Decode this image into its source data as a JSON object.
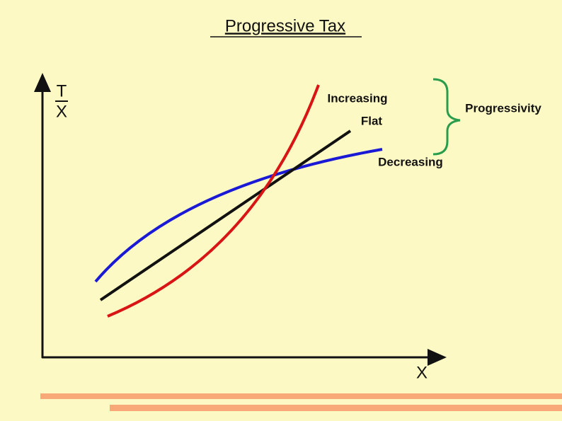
{
  "header": {
    "title": "Progressive Tax"
  },
  "axes": {
    "y_label_numerator": "T",
    "y_label_denominator": "X",
    "x_label": "X"
  },
  "curves": [
    {
      "label": "Increasing"
    },
    {
      "label": "Flat"
    },
    {
      "label": "Decreasing"
    }
  ],
  "brace": {
    "label": "Progressivity"
  }
}
